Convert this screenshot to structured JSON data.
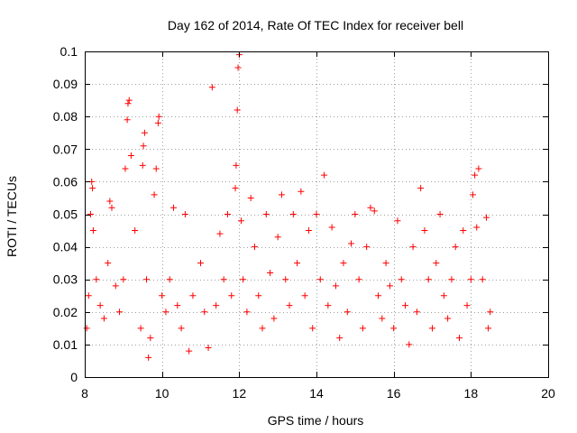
{
  "chart_data": {
    "type": "scatter",
    "title": "Day 162 of 2014, Rate Of TEC Index for receiver bell",
    "xlabel": "GPS time / hours",
    "ylabel": "ROTI / TECUs",
    "xlim": [
      8,
      20
    ],
    "ylim": [
      0,
      0.1
    ],
    "x_ticks": [
      8,
      10,
      12,
      14,
      16,
      18,
      20
    ],
    "y_ticks": [
      0,
      0.01,
      0.02,
      0.03,
      0.04,
      0.05,
      0.06,
      0.07,
      0.08,
      0.09,
      0.1
    ],
    "x_tick_labels": [
      "8",
      "10",
      "12",
      "14",
      "16",
      "18",
      "20"
    ],
    "y_tick_labels": [
      "0",
      "0.01",
      "0.02",
      "0.03",
      "0.04",
      "0.05",
      "0.06",
      "0.07",
      "0.08",
      "0.09",
      "0.1"
    ],
    "grid": true,
    "marker": "+",
    "marker_color": "#ff0000",
    "data_x_range": [
      8.0,
      18.5
    ],
    "series": [
      {
        "name": "ROTI",
        "color": "#ff0000",
        "points": [
          [
            8.05,
            0.015
          ],
          [
            8.1,
            0.025
          ],
          [
            8.15,
            0.05
          ],
          [
            8.18,
            0.06
          ],
          [
            8.2,
            0.058
          ],
          [
            8.22,
            0.045
          ],
          [
            8.3,
            0.03
          ],
          [
            8.4,
            0.022
          ],
          [
            8.5,
            0.018
          ],
          [
            8.6,
            0.035
          ],
          [
            8.65,
            0.054
          ],
          [
            8.7,
            0.052
          ],
          [
            8.8,
            0.028
          ],
          [
            8.9,
            0.02
          ],
          [
            9.0,
            0.03
          ],
          [
            9.05,
            0.064
          ],
          [
            9.1,
            0.079
          ],
          [
            9.12,
            0.084
          ],
          [
            9.15,
            0.085
          ],
          [
            9.2,
            0.068
          ],
          [
            9.3,
            0.045
          ],
          [
            9.45,
            0.015
          ],
          [
            9.5,
            0.065
          ],
          [
            9.52,
            0.071
          ],
          [
            9.55,
            0.075
          ],
          [
            9.6,
            0.03
          ],
          [
            9.65,
            0.006
          ],
          [
            9.7,
            0.012
          ],
          [
            9.8,
            0.056
          ],
          [
            9.85,
            0.064
          ],
          [
            9.9,
            0.078
          ],
          [
            9.92,
            0.08
          ],
          [
            10.0,
            0.025
          ],
          [
            10.1,
            0.02
          ],
          [
            10.2,
            0.03
          ],
          [
            10.3,
            0.052
          ],
          [
            10.4,
            0.022
          ],
          [
            10.5,
            0.015
          ],
          [
            10.6,
            0.05
          ],
          [
            10.7,
            0.008
          ],
          [
            10.8,
            0.025
          ],
          [
            11.0,
            0.035
          ],
          [
            11.1,
            0.02
          ],
          [
            11.2,
            0.009
          ],
          [
            11.3,
            0.089
          ],
          [
            11.4,
            0.022
          ],
          [
            11.5,
            0.044
          ],
          [
            11.6,
            0.03
          ],
          [
            11.7,
            0.05
          ],
          [
            11.8,
            0.025
          ],
          [
            11.9,
            0.058
          ],
          [
            11.92,
            0.065
          ],
          [
            11.95,
            0.082
          ],
          [
            11.97,
            0.095
          ],
          [
            12.0,
            0.099
          ],
          [
            12.05,
            0.048
          ],
          [
            12.1,
            0.03
          ],
          [
            12.2,
            0.02
          ],
          [
            12.3,
            0.055
          ],
          [
            12.4,
            0.04
          ],
          [
            12.5,
            0.025
          ],
          [
            12.6,
            0.015
          ],
          [
            12.7,
            0.05
          ],
          [
            12.8,
            0.032
          ],
          [
            12.9,
            0.018
          ],
          [
            13.0,
            0.043
          ],
          [
            13.1,
            0.056
          ],
          [
            13.2,
            0.03
          ],
          [
            13.3,
            0.022
          ],
          [
            13.4,
            0.05
          ],
          [
            13.5,
            0.035
          ],
          [
            13.6,
            0.057
          ],
          [
            13.7,
            0.025
          ],
          [
            13.8,
            0.045
          ],
          [
            13.9,
            0.015
          ],
          [
            14.0,
            0.05
          ],
          [
            14.1,
            0.03
          ],
          [
            14.2,
            0.062
          ],
          [
            14.3,
            0.022
          ],
          [
            14.4,
            0.046
          ],
          [
            14.5,
            0.028
          ],
          [
            14.6,
            0.012
          ],
          [
            14.7,
            0.035
          ],
          [
            14.8,
            0.02
          ],
          [
            14.9,
            0.041
          ],
          [
            15.0,
            0.05
          ],
          [
            15.1,
            0.03
          ],
          [
            15.2,
            0.015
          ],
          [
            15.3,
            0.04
          ],
          [
            15.4,
            0.052
          ],
          [
            15.5,
            0.051
          ],
          [
            15.6,
            0.025
          ],
          [
            15.7,
            0.018
          ],
          [
            15.8,
            0.035
          ],
          [
            15.9,
            0.028
          ],
          [
            16.0,
            0.015
          ],
          [
            16.1,
            0.048
          ],
          [
            16.2,
            0.03
          ],
          [
            16.3,
            0.022
          ],
          [
            16.4,
            0.01
          ],
          [
            16.5,
            0.04
          ],
          [
            16.6,
            0.02
          ],
          [
            16.7,
            0.058
          ],
          [
            16.8,
            0.045
          ],
          [
            16.9,
            0.03
          ],
          [
            17.0,
            0.015
          ],
          [
            17.1,
            0.035
          ],
          [
            17.2,
            0.05
          ],
          [
            17.3,
            0.025
          ],
          [
            17.4,
            0.018
          ],
          [
            17.5,
            0.03
          ],
          [
            17.6,
            0.04
          ],
          [
            17.7,
            0.012
          ],
          [
            17.8,
            0.045
          ],
          [
            17.9,
            0.022
          ],
          [
            18.0,
            0.03
          ],
          [
            18.05,
            0.056
          ],
          [
            18.1,
            0.062
          ],
          [
            18.15,
            0.046
          ],
          [
            18.2,
            0.064
          ],
          [
            18.3,
            0.03
          ],
          [
            18.4,
            0.049
          ],
          [
            18.45,
            0.015
          ],
          [
            18.5,
            0.02
          ]
        ]
      }
    ]
  }
}
